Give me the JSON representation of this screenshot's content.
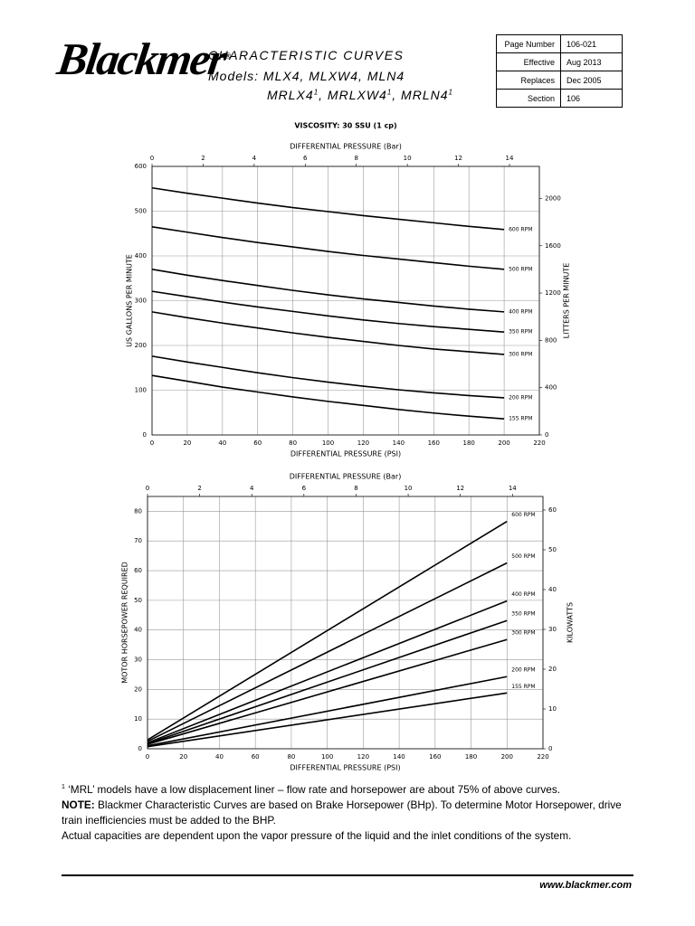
{
  "header": {
    "logo": "Blackmer",
    "registered": "®",
    "title": "CHARACTERISTIC CURVES",
    "models_line1": "Models: MLX4, MLXW4, MLN4",
    "models_line2": [
      "MRLX4",
      "1",
      ", MRLXW4",
      "1",
      ", MRLN4",
      "1"
    ],
    "info": [
      [
        "Page Number",
        "106-021"
      ],
      [
        "Effective",
        "Aug 2013"
      ],
      [
        "Replaces",
        "Dec 2005"
      ],
      [
        "Section",
        "106"
      ]
    ]
  },
  "chart_data": [
    {
      "type": "line",
      "title": "VISCOSITY: 30 SSU (1 cp)",
      "x_label": "DIFFERENTIAL PRESSURE (PSI)",
      "x2_label": "DIFFERENTIAL PRESSURE (Bar)",
      "y_label": "US GALLONS PER MINUTE",
      "y2_label": "LITTERS PER MINUTE",
      "grid": true,
      "x": [
        0,
        20,
        40,
        60,
        80,
        100,
        120,
        140,
        160,
        180,
        200
      ],
      "xlim": [
        0,
        220
      ],
      "xticks": [
        0,
        20,
        40,
        60,
        80,
        100,
        120,
        140,
        160,
        180,
        200,
        220
      ],
      "x2lim": [
        0,
        15.17
      ],
      "x2ticks": [
        0,
        2,
        4,
        6,
        8,
        10,
        12,
        14
      ],
      "ylim": [
        0,
        600
      ],
      "yticks": [
        0,
        100,
        200,
        300,
        400,
        500,
        600
      ],
      "y2lim": [
        0,
        2271
      ],
      "y2ticks": [
        0,
        400,
        800,
        1200,
        1600,
        2000
      ],
      "series": [
        {
          "name": "600 RPM",
          "color": "#000000",
          "values": [
            552,
            540,
            529,
            518,
            508,
            499,
            490,
            482,
            474,
            466,
            459
          ]
        },
        {
          "name": "500 RPM",
          "color": "#000000",
          "values": [
            465,
            453,
            441,
            430,
            420,
            410,
            401,
            393,
            385,
            377,
            370
          ]
        },
        {
          "name": "400 RPM",
          "color": "#000000",
          "values": [
            370,
            357,
            345,
            334,
            323,
            313,
            304,
            296,
            288,
            281,
            275
          ]
        },
        {
          "name": "350 RPM",
          "color": "#000000",
          "values": [
            321,
            309,
            297,
            286,
            276,
            266,
            257,
            249,
            242,
            236,
            230
          ]
        },
        {
          "name": "300 RPM",
          "color": "#000000",
          "values": [
            275,
            262,
            250,
            239,
            228,
            218,
            209,
            200,
            192,
            186,
            180
          ]
        },
        {
          "name": "200 RPM",
          "color": "#000000",
          "values": [
            176,
            163,
            151,
            139,
            128,
            118,
            109,
            101,
            94,
            88,
            83
          ]
        },
        {
          "name": "155 RPM",
          "color": "#000000",
          "values": [
            133,
            120,
            107,
            96,
            85,
            75,
            66,
            57,
            49,
            42,
            36
          ]
        }
      ]
    },
    {
      "type": "line",
      "x_label": "DIFFERENTIAL PRESSURE (PSI)",
      "x2_label": "DIFFERENTIAL PRESSURE (Bar)",
      "y_label": "MOTOR HORSEPOWER REQUIRED",
      "y2_label": "KILOWATTS",
      "grid": true,
      "x": [
        0,
        200
      ],
      "xlim": [
        0,
        220
      ],
      "xticks": [
        0,
        20,
        40,
        60,
        80,
        100,
        120,
        140,
        160,
        180,
        200,
        220
      ],
      "x2lim": [
        0,
        15.17
      ],
      "x2ticks": [
        0,
        2,
        4,
        6,
        8,
        10,
        12,
        14
      ],
      "ylim": [
        0,
        85
      ],
      "yticks": [
        0,
        10,
        20,
        30,
        40,
        50,
        60,
        70,
        80
      ],
      "y2lim": [
        0,
        63.4
      ],
      "y2ticks": [
        0,
        10,
        20,
        30,
        40,
        50,
        60
      ],
      "series": [
        {
          "name": "600 RPM",
          "color": "#000000",
          "values": [
            3,
            76.6
          ]
        },
        {
          "name": "500 RPM",
          "color": "#000000",
          "values": [
            2.5,
            62.6
          ]
        },
        {
          "name": "400 RPM",
          "color": "#000000",
          "values": [
            2,
            49.8
          ]
        },
        {
          "name": "350 RPM",
          "color": "#000000",
          "values": [
            1.7,
            43.2
          ]
        },
        {
          "name": "300 RPM",
          "color": "#000000",
          "values": [
            1.5,
            36.8
          ]
        },
        {
          "name": "200 RPM",
          "color": "#000000",
          "values": [
            1,
            24.3
          ]
        },
        {
          "name": "155 RPM",
          "color": "#000000",
          "values": [
            0.7,
            18.8
          ]
        }
      ]
    }
  ],
  "notes": {
    "footnote_mark": "1",
    "footnote": "‘MRL’ models have a low displacement liner – flow rate and horsepower are about 75% of above curves.",
    "note_label": "NOTE:",
    "note": "Blackmer Characteristic Curves are based on Brake Horsepower (BHp). To determine Motor Horsepower, drive train inefficiencies must be added to the BHP.",
    "remark": "Actual capacities are dependent upon the vapor pressure of the liquid and the inlet conditions of the system."
  },
  "footer": {
    "url": "www.blackmer.com"
  }
}
